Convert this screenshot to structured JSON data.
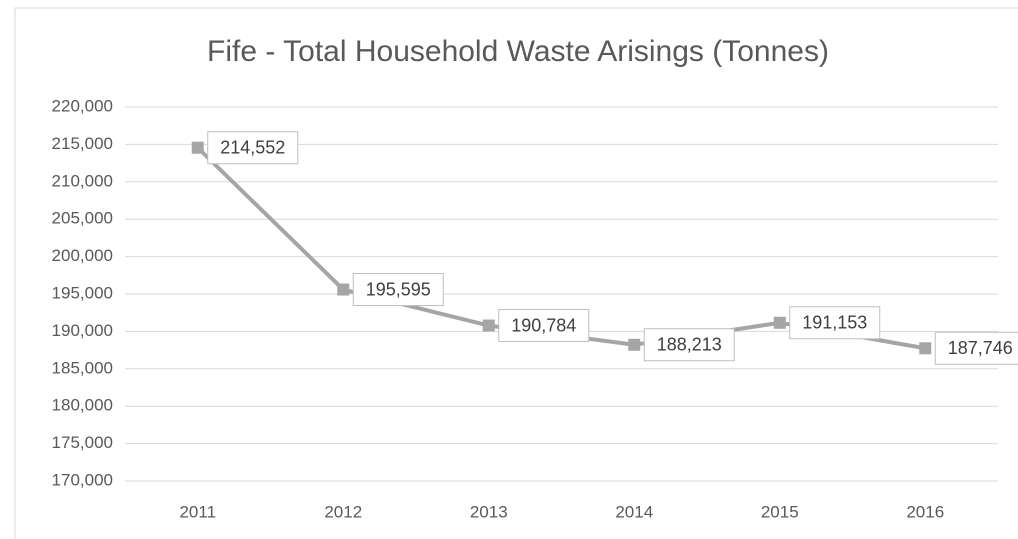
{
  "chart_data": {
    "type": "line",
    "title": "Fife - Total Household Waste Arisings (Tonnes)",
    "categories": [
      "2011",
      "2012",
      "2013",
      "2014",
      "2015",
      "2016"
    ],
    "series": [
      {
        "name": "Fife",
        "color": "#a5a5a5",
        "values": [
          214552,
          195595,
          190784,
          188213,
          191153,
          187746
        ],
        "value_labels": [
          "214,552",
          "195,595",
          "190,784",
          "188,213",
          "191,153",
          "187,746"
        ]
      }
    ],
    "ylim": [
      170000,
      220000
    ],
    "yticks": [
      {
        "value": 170000,
        "label": "170,000"
      },
      {
        "value": 175000,
        "label": "175,000"
      },
      {
        "value": 180000,
        "label": "180,000"
      },
      {
        "value": 185000,
        "label": "185,000"
      },
      {
        "value": 190000,
        "label": "190,000"
      },
      {
        "value": 195000,
        "label": "195,000"
      },
      {
        "value": 200000,
        "label": "200,000"
      },
      {
        "value": 205000,
        "label": "205,000"
      },
      {
        "value": 210000,
        "label": "210,000"
      },
      {
        "value": 215000,
        "label": "215,000"
      },
      {
        "value": 220000,
        "label": "220,000"
      }
    ],
    "grid": true
  }
}
